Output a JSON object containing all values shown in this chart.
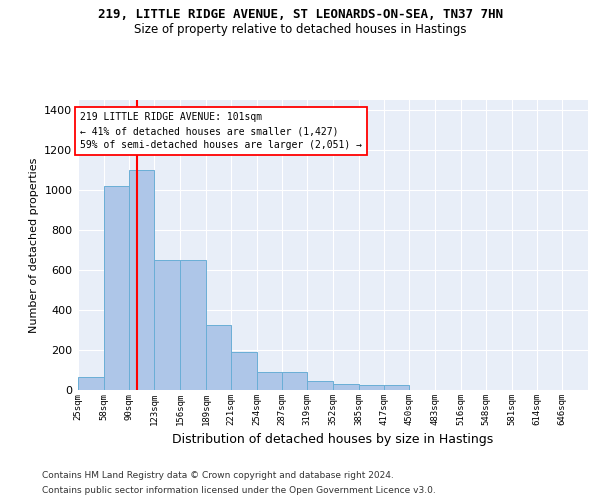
{
  "title_line1": "219, LITTLE RIDGE AVENUE, ST LEONARDS-ON-SEA, TN37 7HN",
  "title_line2": "Size of property relative to detached houses in Hastings",
  "xlabel": "Distribution of detached houses by size in Hastings",
  "ylabel": "Number of detached properties",
  "bar_color": "#aec6e8",
  "bar_edge_color": "#6aaed6",
  "background_color": "#e8eef8",
  "grid_color": "#ffffff",
  "annotation_line1": "219 LITTLE RIDGE AVENUE: 101sqm",
  "annotation_line2": "← 41% of detached houses are smaller (1,427)",
  "annotation_line3": "59% of semi-detached houses are larger (2,051) →",
  "red_line_x": 101,
  "bin_edges": [
    25,
    58,
    90,
    123,
    156,
    189,
    221,
    254,
    287,
    319,
    352,
    385,
    417,
    450,
    483,
    516,
    548,
    581,
    614,
    646,
    679
  ],
  "bar_heights": [
    63,
    1020,
    1100,
    650,
    650,
    325,
    190,
    90,
    90,
    45,
    30,
    25,
    25,
    0,
    0,
    0,
    0,
    0,
    0,
    0
  ],
  "ylim": [
    0,
    1450
  ],
  "yticks": [
    0,
    200,
    400,
    600,
    800,
    1000,
    1200,
    1400
  ],
  "footer_line1": "Contains HM Land Registry data © Crown copyright and database right 2024.",
  "footer_line2": "Contains public sector information licensed under the Open Government Licence v3.0."
}
